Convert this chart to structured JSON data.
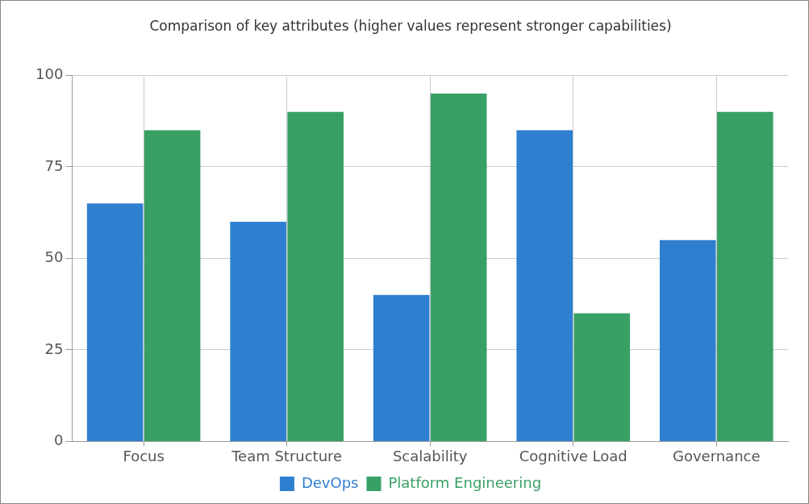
{
  "chart_data": {
    "type": "bar",
    "title": "Comparison of key attributes (higher values represent stronger capabilities)",
    "categories": [
      "Focus",
      "Team Structure",
      "Scalability",
      "Cognitive Load",
      "Governance"
    ],
    "series": [
      {
        "name": "DevOps",
        "color": "#2f7fd1",
        "values": [
          65,
          60,
          40,
          85,
          55
        ]
      },
      {
        "name": "Platform Engineering",
        "color": "#38a065",
        "values": [
          85,
          90,
          95,
          35,
          90
        ]
      }
    ],
    "ylim": [
      0,
      100
    ],
    "yticks": [
      0,
      25,
      50,
      75,
      100
    ],
    "grid": true,
    "legend": "bottom"
  }
}
